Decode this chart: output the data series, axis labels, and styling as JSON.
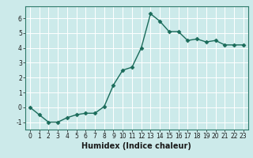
{
  "x": [
    0,
    1,
    2,
    3,
    4,
    5,
    6,
    7,
    8,
    9,
    10,
    11,
    12,
    13,
    14,
    15,
    16,
    17,
    18,
    19,
    20,
    21,
    22,
    23
  ],
  "y": [
    0.0,
    -0.5,
    -1.0,
    -1.0,
    -0.7,
    -0.5,
    -0.4,
    -0.4,
    0.05,
    1.5,
    2.5,
    2.7,
    4.0,
    6.3,
    5.8,
    5.1,
    5.1,
    4.5,
    4.6,
    4.4,
    4.5,
    4.2,
    4.2,
    4.2
  ],
  "line_color": "#1a6b5a",
  "marker": "D",
  "markersize": 2.5,
  "linewidth": 1.0,
  "xlabel": "Humidex (Indice chaleur)",
  "ylim": [
    -1.5,
    6.8
  ],
  "xlim": [
    -0.5,
    23.5
  ],
  "yticks": [
    -1,
    0,
    1,
    2,
    3,
    4,
    5,
    6
  ],
  "xticks": [
    0,
    1,
    2,
    3,
    4,
    5,
    6,
    7,
    8,
    9,
    10,
    11,
    12,
    13,
    14,
    15,
    16,
    17,
    18,
    19,
    20,
    21,
    22,
    23
  ],
  "background_color": "#cceaea",
  "grid_color": "#ffffff",
  "tick_fontsize": 5.5,
  "xlabel_fontsize": 7.0,
  "spine_color": "#2d7a6a"
}
